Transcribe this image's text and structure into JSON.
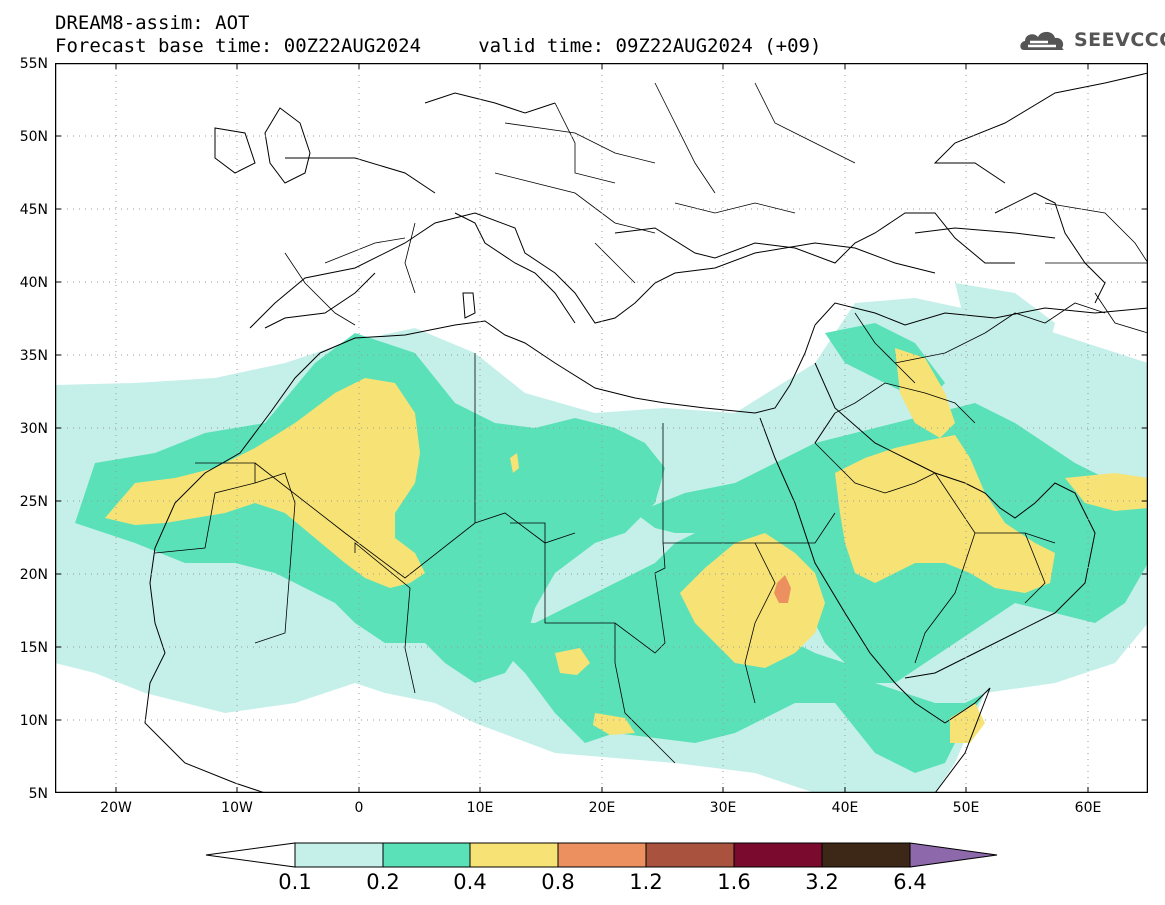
{
  "header": {
    "line1": "DREAM8-assim: AOT",
    "line2": "Forecast base time: 00Z22AUG2024     valid time: 09Z22AUG2024 (+09)"
  },
  "logo": {
    "text": "SEEVCCC",
    "icon": "cloud-icon",
    "color": "#555555"
  },
  "map": {
    "lat_labels": [
      "55N",
      "50N",
      "45N",
      "40N",
      "35N",
      "30N",
      "25N",
      "20N",
      "15N",
      "10N",
      "5N"
    ],
    "lon_labels": [
      "20W",
      "10W",
      "0",
      "10E",
      "20E",
      "30E",
      "40E",
      "50E",
      "60E"
    ],
    "lon_range": [
      -25,
      65
    ],
    "lat_range": [
      5,
      55
    ]
  },
  "colorbar": {
    "labels": [
      "0.1",
      "0.2",
      "0.4",
      "0.8",
      "1.2",
      "1.6",
      "3.2",
      "6.4"
    ],
    "colors": [
      "#ffffff",
      "#c4f0e9",
      "#5be1b8",
      "#f7e375",
      "#ec9060",
      "#a9533f",
      "#7a0b2e",
      "#3d2817",
      "#8d68aa"
    ]
  }
}
